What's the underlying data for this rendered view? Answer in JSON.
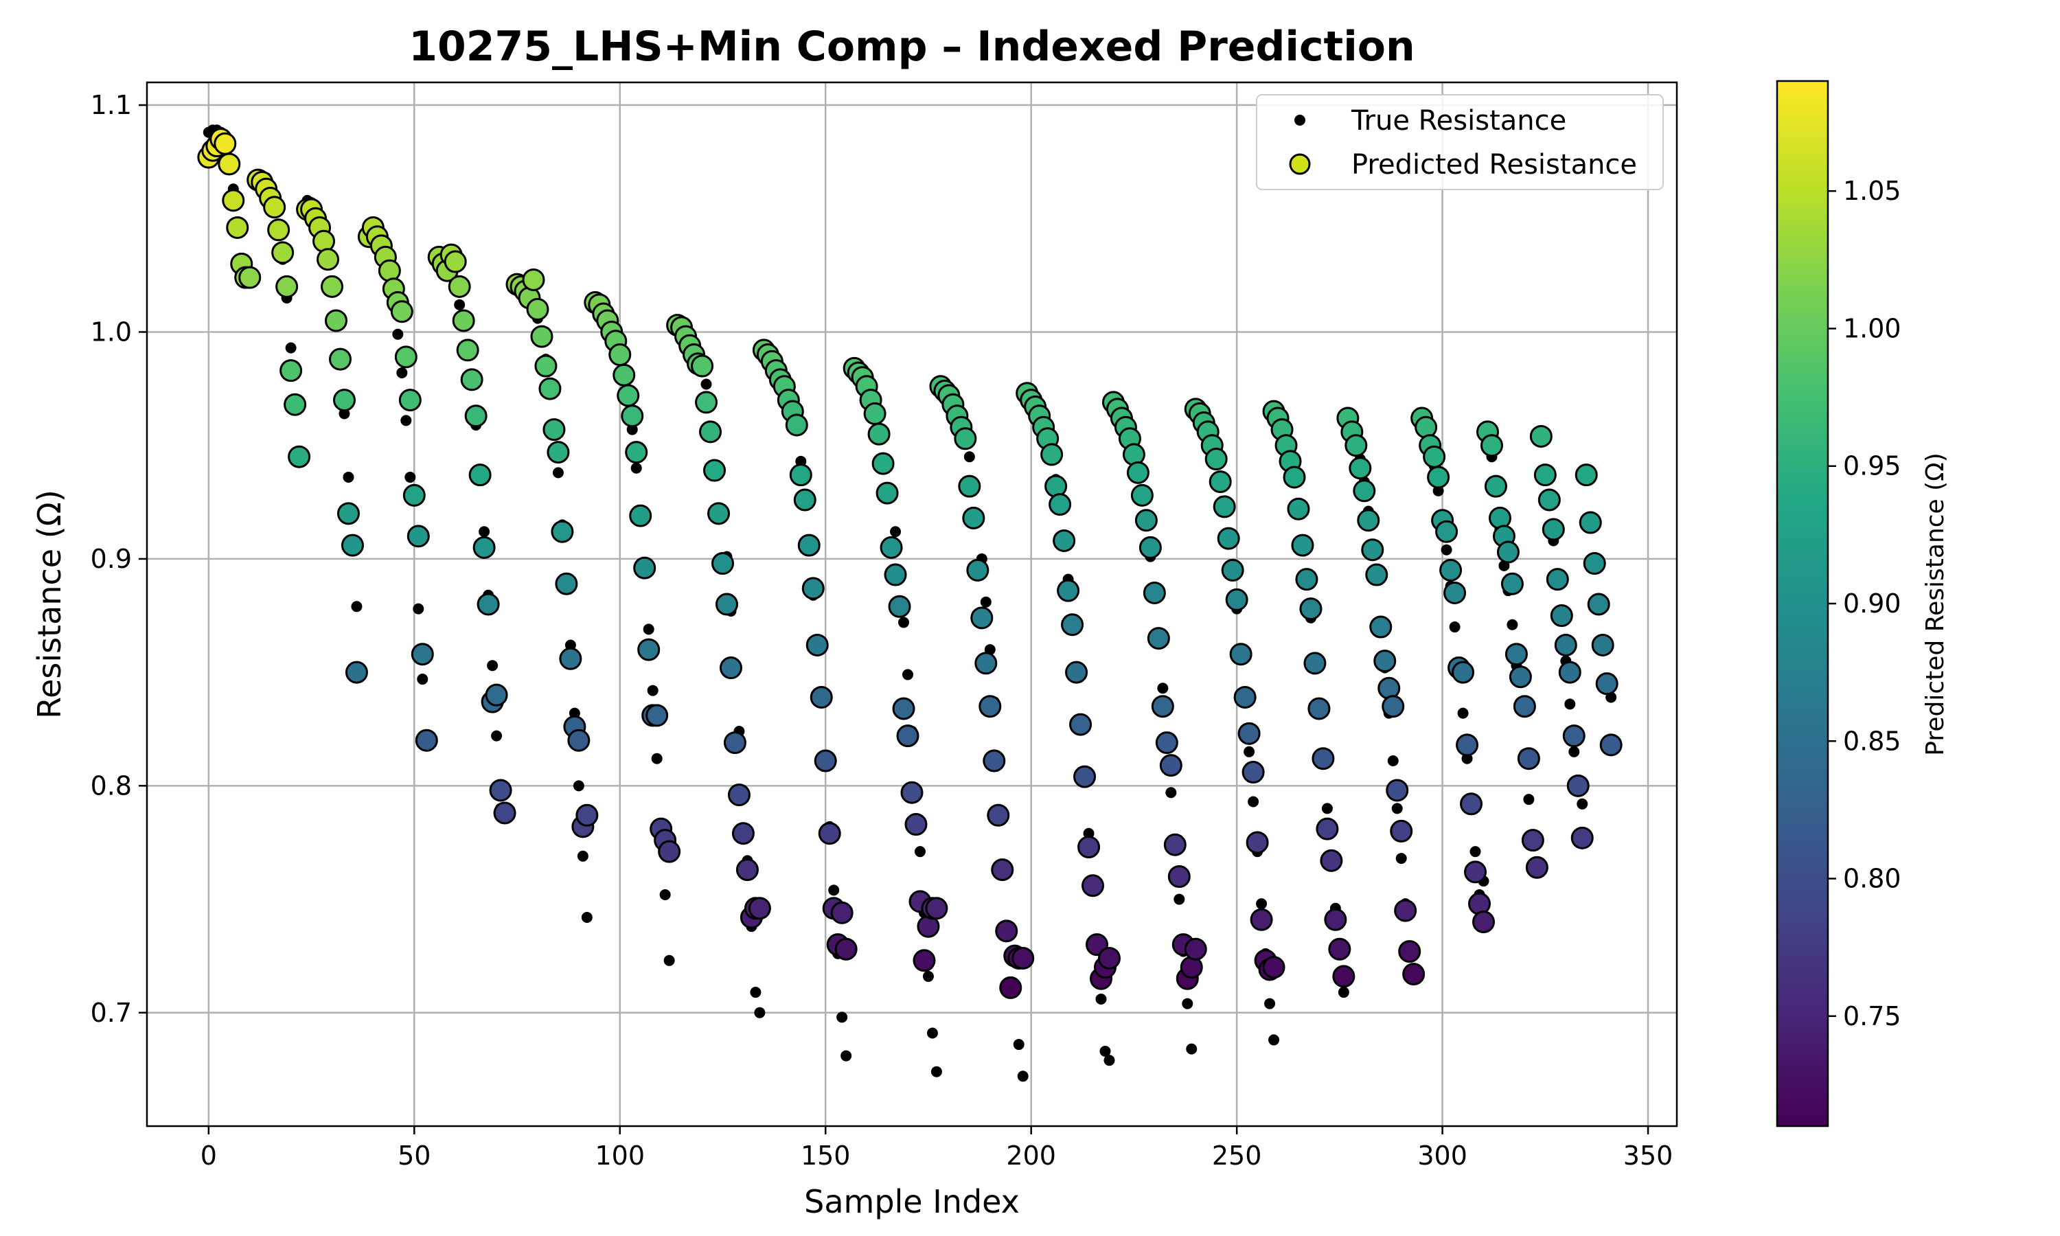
{
  "chart_data": {
    "type": "scatter",
    "title": "10275_LHS+Min Comp – Indexed Prediction",
    "xlabel": "Sample Index",
    "ylabel": "Resistance (Ω)",
    "xlim": [
      -15,
      357
    ],
    "ylim": [
      0.65,
      1.11
    ],
    "x_ticks": [
      0,
      50,
      100,
      150,
      200,
      250,
      300,
      350
    ],
    "y_ticks": [
      0.7,
      0.8,
      0.9,
      1.0,
      1.1
    ],
    "y_tick_labels": [
      "0.7",
      "0.8",
      "0.9",
      "1.0",
      "1.1"
    ],
    "grid": true,
    "legend_position": "top-right",
    "colormap": "viridis",
    "colorbar": {
      "label": "Predicted Resistance (Ω)",
      "range": [
        0.71,
        1.09
      ],
      "ticks": [
        0.75,
        0.8,
        0.85,
        0.9,
        0.95,
        1.0,
        1.05
      ],
      "tick_labels": [
        "0.75",
        "0.80",
        "0.85",
        "0.90",
        "0.95",
        "1.00",
        "1.05"
      ]
    },
    "series": [
      {
        "name": "True Resistance",
        "color": "#000000",
        "marker": "small-dot",
        "groups": [
          {
            "x0": 0,
            "values": [
              1.088,
              1.089,
              1.089,
              1.088,
              1.084,
              1.075,
              1.063,
              1.047,
              1.03,
              1.025,
              1.024
            ]
          },
          {
            "x0": 12,
            "values": [
              1.069,
              1.069,
              1.068,
              1.064,
              1.057,
              1.046,
              1.032,
              1.015,
              0.993,
              0.968,
              0.945
            ]
          },
          {
            "x0": 24,
            "values": [
              1.058,
              1.057,
              1.054,
              1.049,
              1.042,
              1.033,
              1.021,
              1.006,
              0.989,
              0.964,
              0.936,
              0.907,
              0.879
            ]
          },
          {
            "x0": 39,
            "values": [
              1.044,
              1.044,
              1.042,
              1.039,
              1.033,
              1.024,
              1.014,
              0.999,
              0.982,
              0.961,
              0.936,
              0.91,
              0.878,
              0.847,
              0.821
            ]
          },
          {
            "x0": 56,
            "values": [
              1.034,
              1.033,
              1.03,
              1.026,
              1.02,
              1.012,
              1.004,
              0.992,
              0.977,
              0.959,
              0.937,
              0.912,
              0.884,
              0.853,
              0.822,
              0.79,
              0.787
            ]
          },
          {
            "x0": 75,
            "values": [
              1.021,
              1.021,
              1.02,
              1.017,
              1.012,
              1.006,
              0.998,
              0.988,
              0.975,
              0.958,
              0.938,
              0.915,
              0.889,
              0.862,
              0.832,
              0.8,
              0.769,
              0.742
            ]
          },
          {
            "x0": 94,
            "values": [
              1.014,
              1.014,
              1.012,
              1.008,
              1.003,
              0.997,
              0.99,
              0.982,
              0.971,
              0.957,
              0.94,
              0.919,
              0.895,
              0.869,
              0.842,
              0.812,
              0.781,
              0.752,
              0.723
            ]
          },
          {
            "x0": 114,
            "values": [
              1.004,
              1.003,
              1.001,
              0.998,
              0.994,
              0.989,
              0.983,
              0.977,
              0.968,
              0.957,
              0.94,
              0.921,
              0.901,
              0.877,
              0.852,
              0.824,
              0.796,
              0.767,
              0.738,
              0.709,
              0.7
            ]
          },
          {
            "x0": 135,
            "values": [
              0.993,
              0.992,
              0.99,
              0.987,
              0.983,
              0.979,
              0.974,
              0.967,
              0.959,
              0.943,
              0.926,
              0.906,
              0.884,
              0.862,
              0.838,
              0.812,
              0.782,
              0.754,
              0.726,
              0.698,
              0.681
            ]
          },
          {
            "x0": 157,
            "values": [
              0.985,
              0.984,
              0.981,
              0.978,
              0.974,
              0.969,
              0.963,
              0.955,
              0.942,
              0.929,
              0.912,
              0.893,
              0.872,
              0.849,
              0.824,
              0.797,
              0.771,
              0.744,
              0.716,
              0.691,
              0.674
            ]
          },
          {
            "x0": 178,
            "values": [
              0.977,
              0.976,
              0.973,
              0.97,
              0.965,
              0.959,
              0.953,
              0.945,
              0.932,
              0.917,
              0.9,
              0.881,
              0.86,
              0.837,
              0.812,
              0.787,
              0.762,
              0.736,
              0.711,
              0.686,
              0.672
            ]
          },
          {
            "x0": 199,
            "values": [
              0.974,
              0.972,
              0.969,
              0.965,
              0.96,
              0.954,
              0.946,
              0.935,
              0.923,
              0.909,
              0.891,
              0.871,
              0.851,
              0.828,
              0.804,
              0.779,
              0.755,
              0.73,
              0.706,
              0.683,
              0.679
            ]
          },
          {
            "x0": 220,
            "values": [
              0.97,
              0.968,
              0.964,
              0.96,
              0.955,
              0.947,
              0.938,
              0.928,
              0.916,
              0.901,
              0.884,
              0.865,
              0.843,
              0.82,
              0.797,
              0.774,
              0.75,
              0.727,
              0.704,
              0.684
            ]
          },
          {
            "x0": 240,
            "values": [
              0.965,
              0.963,
              0.959,
              0.955,
              0.95,
              0.944,
              0.934,
              0.924,
              0.911,
              0.896,
              0.878,
              0.858,
              0.837,
              0.815,
              0.793,
              0.771,
              0.748,
              0.726,
              0.704,
              0.688
            ]
          },
          {
            "x0": 259,
            "values": [
              0.964,
              0.961,
              0.957,
              0.951,
              0.943,
              0.934,
              0.922,
              0.907,
              0.891,
              0.874,
              0.854,
              0.834,
              0.812,
              0.79,
              0.768,
              0.746,
              0.727,
              0.709
            ]
          },
          {
            "x0": 277,
            "values": [
              0.962,
              0.958,
              0.952,
              0.944,
              0.934,
              0.921,
              0.906,
              0.891,
              0.872,
              0.852,
              0.832,
              0.811,
              0.79,
              0.768,
              0.748,
              0.729,
              0.717
            ]
          },
          {
            "x0": 295,
            "values": [
              0.961,
              0.956,
              0.95,
              0.941,
              0.93,
              0.916,
              0.904,
              0.888,
              0.87,
              0.852,
              0.832,
              0.812,
              0.792,
              0.771,
              0.752,
              0.758
            ]
          },
          {
            "x0": 311,
            "values": [
              0.957,
              0.945,
              0.93,
              0.913,
              0.897,
              0.886,
              0.871,
              0.853,
              0.834,
              0.814,
              0.794,
              0.777,
              0.764
            ]
          },
          {
            "x0": 324,
            "values": [
              0.954,
              0.939,
              0.925,
              0.908,
              0.892,
              0.876,
              0.855,
              0.836,
              0.815,
              0.8,
              0.792,
              0.937,
              0.918,
              0.896,
              0.878,
              0.862,
              0.846,
              0.839
            ]
          }
        ]
      },
      {
        "name": "Predicted Resistance",
        "color_by_value": true,
        "marker": "circle",
        "groups": [
          {
            "x0": 0,
            "values": [
              1.077,
              1.08,
              1.082,
              1.085,
              1.083,
              1.074,
              1.058,
              1.046,
              1.03,
              1.024,
              1.024
            ]
          },
          {
            "x0": 12,
            "values": [
              1.067,
              1.066,
              1.063,
              1.059,
              1.055,
              1.045,
              1.035,
              1.02,
              0.983,
              0.968,
              0.945
            ]
          },
          {
            "x0": 24,
            "values": [
              1.054,
              1.054,
              1.05,
              1.046,
              1.04,
              1.032,
              1.02,
              1.005,
              0.988,
              0.97,
              0.92,
              0.906,
              0.85
            ]
          },
          {
            "x0": 39,
            "values": [
              1.042,
              1.046,
              1.042,
              1.038,
              1.033,
              1.027,
              1.019,
              1.013,
              1.009,
              0.989,
              0.97,
              0.928,
              0.91,
              0.858,
              0.82
            ]
          },
          {
            "x0": 56,
            "values": [
              1.033,
              1.03,
              1.027,
              1.034,
              1.031,
              1.02,
              1.005,
              0.992,
              0.979,
              0.963,
              0.937,
              0.905,
              0.88,
              0.837,
              0.84,
              0.798,
              0.788
            ]
          },
          {
            "x0": 75,
            "values": [
              1.021,
              1.02,
              1.018,
              1.015,
              1.023,
              1.01,
              0.998,
              0.985,
              0.975,
              0.957,
              0.947,
              0.912,
              0.889,
              0.856,
              0.826,
              0.82,
              0.782,
              0.787
            ]
          },
          {
            "x0": 94,
            "values": [
              1.013,
              1.012,
              1.008,
              1.005,
              1.0,
              0.996,
              0.99,
              0.981,
              0.972,
              0.963,
              0.947,
              0.919,
              0.896,
              0.86,
              0.831,
              0.831,
              0.781,
              0.776,
              0.771
            ]
          },
          {
            "x0": 114,
            "values": [
              1.003,
              1.002,
              0.998,
              0.994,
              0.99,
              0.986,
              0.985,
              0.969,
              0.956,
              0.939,
              0.92,
              0.898,
              0.88,
              0.852,
              0.819,
              0.796,
              0.779,
              0.763,
              0.742,
              0.746,
              0.746
            ]
          },
          {
            "x0": 135,
            "values": [
              0.992,
              0.99,
              0.987,
              0.983,
              0.979,
              0.976,
              0.97,
              0.965,
              0.959,
              0.937,
              0.926,
              0.906,
              0.887,
              0.862,
              0.839,
              0.811,
              0.779,
              0.746,
              0.73,
              0.744,
              0.728
            ]
          },
          {
            "x0": 157,
            "values": [
              0.984,
              0.982,
              0.98,
              0.976,
              0.97,
              0.964,
              0.955,
              0.942,
              0.929,
              0.905,
              0.893,
              0.879,
              0.834,
              0.822,
              0.797,
              0.783,
              0.749,
              0.723,
              0.738,
              0.746,
              0.746
            ]
          },
          {
            "x0": 178,
            "values": [
              0.976,
              0.974,
              0.972,
              0.968,
              0.963,
              0.958,
              0.953,
              0.932,
              0.918,
              0.895,
              0.874,
              0.854,
              0.835,
              0.811,
              0.787,
              0.763,
              0.736,
              0.711,
              0.725,
              0.724,
              0.724
            ]
          },
          {
            "x0": 199,
            "values": [
              0.973,
              0.97,
              0.967,
              0.963,
              0.958,
              0.953,
              0.946,
              0.932,
              0.924,
              0.908,
              0.886,
              0.871,
              0.85,
              0.827,
              0.804,
              0.773,
              0.756,
              0.73,
              0.715,
              0.72,
              0.724
            ]
          },
          {
            "x0": 220,
            "values": [
              0.969,
              0.966,
              0.962,
              0.958,
              0.953,
              0.946,
              0.938,
              0.928,
              0.917,
              0.905,
              0.885,
              0.865,
              0.835,
              0.819,
              0.809,
              0.774,
              0.76,
              0.73,
              0.715,
              0.72,
              0.728
            ]
          },
          {
            "x0": 240,
            "values": [
              0.966,
              0.964,
              0.96,
              0.956,
              0.95,
              0.944,
              0.934,
              0.923,
              0.909,
              0.895,
              0.882,
              0.858,
              0.839,
              0.823,
              0.806,
              0.775,
              0.741,
              0.723,
              0.719,
              0.72
            ]
          },
          {
            "x0": 259,
            "values": [
              0.965,
              0.962,
              0.957,
              0.95,
              0.943,
              0.936,
              0.922,
              0.906,
              0.891,
              0.878,
              0.854,
              0.834,
              0.812,
              0.781,
              0.767,
              0.741,
              0.728,
              0.716
            ]
          },
          {
            "x0": 277,
            "values": [
              0.962,
              0.956,
              0.95,
              0.94,
              0.93,
              0.917,
              0.904,
              0.893,
              0.87,
              0.855,
              0.843,
              0.835,
              0.798,
              0.78,
              0.745,
              0.727,
              0.717
            ]
          },
          {
            "x0": 295,
            "values": [
              0.962,
              0.958,
              0.95,
              0.945,
              0.936,
              0.917,
              0.912,
              0.895,
              0.885,
              0.852,
              0.85,
              0.818,
              0.792,
              0.762,
              0.748,
              0.74
            ]
          },
          {
            "x0": 311,
            "values": [
              0.956,
              0.95,
              0.932,
              0.918,
              0.91,
              0.903,
              0.889,
              0.858,
              0.848,
              0.835,
              0.812,
              0.776,
              0.764
            ]
          },
          {
            "x0": 324,
            "values": [
              0.954,
              0.937,
              0.926,
              0.913,
              0.891,
              0.875,
              0.862,
              0.85,
              0.822,
              0.8,
              0.777,
              0.937,
              0.916,
              0.898,
              0.88,
              0.862,
              0.845,
              0.818
            ]
          }
        ]
      }
    ]
  }
}
